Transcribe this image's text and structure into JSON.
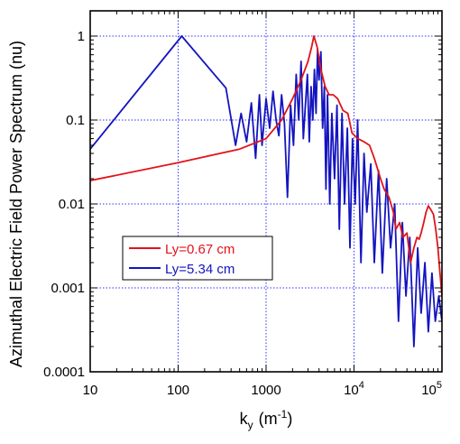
{
  "chart_data": {
    "type": "line",
    "x_scale": "log",
    "y_scale": "log",
    "xlim": [
      10,
      100000
    ],
    "ylim": [
      0.0001,
      2
    ],
    "grid": true,
    "legend_position": "bottom-left",
    "xlabel": {
      "main": "k",
      "sub": "y",
      "unit": "(m",
      "unit_exp": "-1",
      "close": ")"
    },
    "ylabel": "Azimuthal Electric Field Power Spectrum (nu)",
    "x_ticks": [
      {
        "value": 10,
        "label": "10",
        "exp": ""
      },
      {
        "value": 100,
        "label": "100",
        "exp": ""
      },
      {
        "value": 1000,
        "label": "1000",
        "exp": ""
      },
      {
        "value": 10000,
        "label": "10",
        "exp": "4"
      },
      {
        "value": 100000,
        "label": "10",
        "exp": "5"
      }
    ],
    "y_ticks": [
      {
        "value": 1,
        "label": "1"
      },
      {
        "value": 0.1,
        "label": "0.1"
      },
      {
        "value": 0.01,
        "label": "0.01"
      },
      {
        "value": 0.001,
        "label": "0.001"
      },
      {
        "value": 0.0001,
        "label": "0.0001"
      }
    ],
    "series": [
      {
        "name": "Ly=0.67 cm",
        "color": "#e0141a",
        "x": [
          10,
          100,
          500,
          1000,
          1500,
          2000,
          2500,
          3000,
          3300,
          3500,
          3800,
          4200,
          4700,
          5200,
          5800,
          6500,
          7500,
          8500,
          9500,
          11000,
          13000,
          15000,
          17000,
          20000,
          22000,
          25000,
          28000,
          30000,
          33000,
          36000,
          40000,
          44000,
          48000,
          52000,
          55000,
          58000,
          62000,
          66000,
          70000,
          75000,
          80000,
          85000,
          90000,
          95000,
          100000
        ],
        "y": [
          0.019,
          0.031,
          0.045,
          0.06,
          0.1,
          0.18,
          0.3,
          0.5,
          0.75,
          1.0,
          0.75,
          0.4,
          0.25,
          0.2,
          0.2,
          0.18,
          0.13,
          0.12,
          0.07,
          0.06,
          0.055,
          0.05,
          0.035,
          0.02,
          0.015,
          0.012,
          0.008,
          0.005,
          0.006,
          0.004,
          0.0045,
          0.002,
          0.003,
          0.004,
          0.0038,
          0.0045,
          0.006,
          0.008,
          0.0095,
          0.0085,
          0.0075,
          0.005,
          0.003,
          0.0015,
          0.0008
        ]
      },
      {
        "name": "Ly=5.34 cm",
        "color": "#1414c0",
        "x": [
          10,
          110,
          350,
          450,
          520,
          600,
          680,
          760,
          840,
          900,
          1000,
          1100,
          1200,
          1300,
          1400,
          1500,
          1620,
          1750,
          1900,
          2050,
          2200,
          2350,
          2500,
          2650,
          2800,
          2950,
          3100,
          3250,
          3400,
          3550,
          3700,
          3850,
          4000,
          4200,
          4400,
          4600,
          4800,
          5000,
          5300,
          5600,
          6000,
          6400,
          6800,
          7300,
          7800,
          8400,
          9000,
          9600,
          10300,
          11000,
          12000,
          13000,
          14000,
          15500,
          17000,
          19000,
          21000,
          23500,
          26000,
          29000,
          32000,
          35500,
          39000,
          43000,
          48000,
          53000,
          58000,
          64000,
          70000,
          77000,
          84000,
          92000,
          100000
        ],
        "y": [
          0.045,
          1.0,
          0.24,
          0.05,
          0.12,
          0.055,
          0.16,
          0.035,
          0.2,
          0.05,
          0.18,
          0.08,
          0.22,
          0.1,
          0.065,
          0.2,
          0.09,
          0.012,
          0.15,
          0.05,
          0.35,
          0.1,
          0.5,
          0.06,
          0.15,
          0.35,
          0.055,
          0.25,
          0.1,
          0.4,
          0.12,
          0.7,
          0.3,
          0.65,
          0.08,
          0.25,
          0.015,
          0.2,
          0.01,
          0.12,
          0.02,
          0.15,
          0.005,
          0.12,
          0.01,
          0.08,
          0.003,
          0.06,
          0.01,
          0.1,
          0.002,
          0.04,
          0.008,
          0.03,
          0.002,
          0.025,
          0.0015,
          0.02,
          0.003,
          0.01,
          0.0004,
          0.006,
          0.0008,
          0.004,
          0.0002,
          0.003,
          0.0005,
          0.002,
          0.0003,
          0.0015,
          0.0004,
          0.0008,
          0.0004
        ]
      }
    ]
  }
}
